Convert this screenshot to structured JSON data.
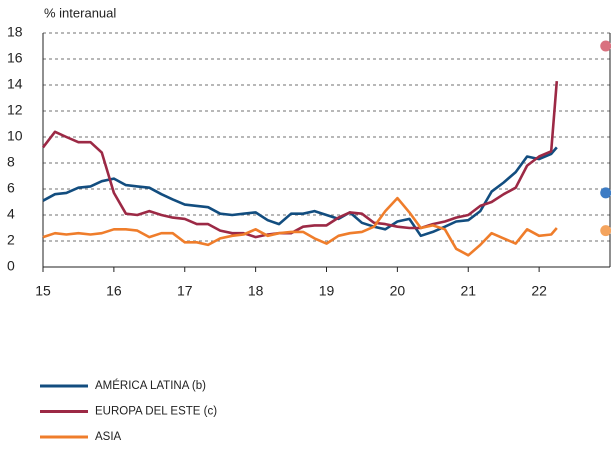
{
  "chart_data": {
    "type": "line",
    "y_label": "% interanual",
    "x": [
      15,
      15.17,
      15.33,
      15.5,
      15.67,
      15.83,
      16,
      16.17,
      16.33,
      16.5,
      16.67,
      16.83,
      17,
      17.17,
      17.33,
      17.5,
      17.67,
      17.83,
      18,
      18.17,
      18.33,
      18.5,
      18.67,
      18.83,
      19,
      19.17,
      19.33,
      19.5,
      19.67,
      19.83,
      20,
      20.17,
      20.33,
      20.5,
      20.67,
      20.83,
      21,
      21.17,
      21.33,
      21.5,
      21.67,
      21.83,
      22,
      22.17,
      22.25
    ],
    "series": [
      {
        "name": "AMÉRICA LATINA (b)",
        "color": "#124d7f",
        "marker_color": "#3d7cc4",
        "values": [
          5.1,
          5.6,
          5.7,
          6.1,
          6.2,
          6.6,
          6.8,
          6.3,
          6.2,
          6.1,
          5.6,
          5.2,
          4.8,
          4.7,
          4.6,
          4.1,
          4.0,
          4.1,
          4.2,
          3.6,
          3.3,
          4.1,
          4.1,
          4.3,
          4.0,
          3.7,
          4.2,
          3.4,
          3.1,
          2.9,
          3.5,
          3.7,
          2.4,
          2.7,
          3.1,
          3.5,
          3.6,
          4.3,
          5.8,
          6.5,
          7.3,
          8.5,
          8.3,
          8.7,
          9.2
        ],
        "marker": {
          "x": 22.94,
          "y": 5.7
        }
      },
      {
        "name": "EUROPA DEL ESTE (c)",
        "color": "#9c2945",
        "marker_color": "#d9717f",
        "values": [
          9.2,
          10.4,
          10.0,
          9.6,
          9.6,
          8.8,
          5.7,
          4.1,
          4.0,
          4.3,
          4.0,
          3.8,
          3.7,
          3.3,
          3.3,
          2.8,
          2.6,
          2.6,
          2.3,
          2.5,
          2.6,
          2.6,
          3.1,
          3.2,
          3.2,
          3.8,
          4.2,
          4.1,
          3.4,
          3.3,
          3.1,
          3.0,
          3.0,
          3.3,
          3.5,
          3.8,
          4.0,
          4.7,
          5.0,
          5.6,
          6.1,
          7.8,
          8.5,
          8.9,
          14.3
        ],
        "marker": {
          "x": 22.94,
          "y": 17
        }
      },
      {
        "name": "ASIA",
        "color": "#ef7d2b",
        "marker_color": "#f4a45e",
        "values": [
          2.3,
          2.6,
          2.5,
          2.6,
          2.5,
          2.6,
          2.9,
          2.9,
          2.8,
          2.3,
          2.6,
          2.6,
          1.9,
          1.9,
          1.7,
          2.2,
          2.4,
          2.5,
          2.9,
          2.4,
          2.6,
          2.7,
          2.7,
          2.2,
          1.8,
          2.4,
          2.6,
          2.7,
          3.1,
          4.3,
          5.3,
          4.2,
          3.0,
          3.2,
          2.9,
          1.4,
          0.9,
          1.7,
          2.6,
          2.2,
          1.8,
          2.9,
          2.4,
          2.5,
          3.0
        ],
        "marker": {
          "x": 22.94,
          "y": 2.8
        }
      }
    ],
    "xlim": [
      15,
      23
    ],
    "xticks": [
      15,
      16,
      17,
      18,
      19,
      20,
      21,
      22
    ],
    "ylim": [
      0,
      18
    ],
    "yticks": [
      0,
      2,
      4,
      6,
      8,
      10,
      12,
      14,
      16,
      18
    ],
    "grid": true
  }
}
